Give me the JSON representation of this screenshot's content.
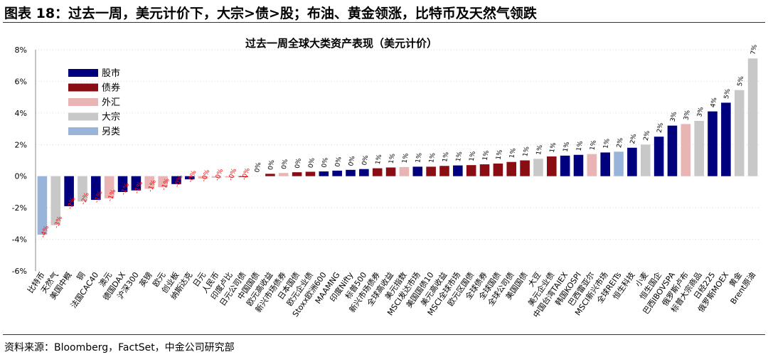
{
  "figure_title": "图表 18：过去一周，美元计价下，大宗>债>股；布油、黄金领涨，比特币及天然气领跌",
  "source": "资料来源：Bloomberg，FactSet，中金公司研究部",
  "colors": {
    "equity": "#00007F",
    "bond": "#8B0D14",
    "fx": "#E8B4B4",
    "commodity": "#C8C8C8",
    "alternative": "#99B4DB",
    "negative_label": "#FF0000",
    "positive_label": "#000000"
  },
  "chart_data": {
    "type": "bar",
    "title": "过去一周全球大类资产表现（美元计价）",
    "ylim": [
      -6,
      8
    ],
    "yticks": [
      "8%",
      "6%",
      "4%",
      "2%",
      "0%",
      "-2%",
      "-4%",
      "-6%"
    ],
    "ytick_values": [
      8,
      6,
      4,
      2,
      0,
      -2,
      -4,
      -6
    ],
    "grid": true,
    "legend_position": "top-left",
    "legend": [
      {
        "name": "股市",
        "cls": "equity"
      },
      {
        "name": "债券",
        "cls": "bond"
      },
      {
        "name": "外汇",
        "cls": "fx"
      },
      {
        "name": "大宗",
        "cls": "commodity"
      },
      {
        "name": "另类",
        "cls": "alternative"
      }
    ],
    "categories": [
      "比特币",
      "天然气",
      "美国中概",
      "铜",
      "法国CAC40",
      "澳元",
      "德国DAX",
      "沪深300",
      "英镑",
      "欧元",
      "创业板",
      "纳斯达克",
      "日元",
      "人民币",
      "印度卢比",
      "日元公司债",
      "中国国债",
      "欧元高收益",
      "新兴市场债券",
      "日本国债",
      "欧元企业债",
      "Stoxx欧洲600",
      "MAAMNG",
      "印度Nifty",
      "标普500",
      "新兴市场债券",
      "全球高收益",
      "美元指数",
      "MSCI发达市场",
      "美国国债10",
      "美元高收益",
      "MSCI全球市场",
      "欧元区国债",
      "全球债券",
      "全球国债",
      "全球公司债",
      "美国国债",
      "大豆",
      "美元企业债",
      "中国台湾TAIEX",
      "韩国KOSPI",
      "巴西雷亚尔",
      "MSCI新兴市场",
      "全球REITs",
      "恒生科技",
      "小麦",
      "恒生国企",
      "巴西IBOVSPA",
      "俄罗斯卢布",
      "标普大宗商品",
      "日经225",
      "俄罗斯MOEX",
      "黄金",
      "Brent原油"
    ],
    "values": [
      -3.7,
      -3.1,
      -1.9,
      -1.6,
      -1.5,
      -1.4,
      -1.0,
      -0.9,
      -0.8,
      -0.7,
      -0.5,
      -0.2,
      -0.15,
      -0.1,
      -0.08,
      -0.05,
      0.0,
      0.15,
      0.2,
      0.25,
      0.28,
      0.3,
      0.35,
      0.4,
      0.45,
      0.5,
      0.55,
      0.58,
      0.6,
      0.6,
      0.65,
      0.68,
      0.7,
      0.75,
      0.8,
      0.9,
      1.0,
      1.1,
      1.25,
      1.3,
      1.35,
      1.4,
      1.5,
      1.55,
      1.8,
      2.0,
      2.5,
      3.2,
      3.3,
      3.5,
      4.1,
      4.65,
      5.45,
      7.45
    ],
    "value_labels": [
      "-4%",
      "-3%",
      "-2%",
      "-2%",
      "-1%",
      "-1%",
      "-1%",
      "-1%",
      "-1%",
      "-1%",
      "-0%",
      "-0%",
      "-0%",
      "-0%",
      "-0%",
      "-0%",
      "0%",
      "0%",
      "0%",
      "0%",
      "0%",
      "0%",
      "0%",
      "0%",
      "0%",
      "1%",
      "1%",
      "1%",
      "1%",
      "1%",
      "1%",
      "1%",
      "1%",
      "1%",
      "1%",
      "1%",
      "1%",
      "1%",
      "1%",
      "1%",
      "1%",
      "1%",
      "1%",
      "2%",
      "2%",
      "2%",
      "2%",
      "3%",
      "3%",
      "3%",
      "4%",
      "5%",
      "5%",
      "7%"
    ],
    "asset_classes": [
      "alternative",
      "commodity",
      "equity",
      "commodity",
      "equity",
      "fx",
      "equity",
      "equity",
      "fx",
      "fx",
      "equity",
      "equity",
      "fx",
      "fx",
      "fx",
      "bond",
      "bond",
      "bond",
      "fx",
      "bond",
      "bond",
      "equity",
      "equity",
      "equity",
      "equity",
      "bond",
      "bond",
      "fx",
      "equity",
      "bond",
      "bond",
      "equity",
      "bond",
      "bond",
      "bond",
      "bond",
      "bond",
      "commodity",
      "bond",
      "equity",
      "equity",
      "fx",
      "equity",
      "alternative",
      "equity",
      "commodity",
      "equity",
      "equity",
      "fx",
      "commodity",
      "equity",
      "equity",
      "commodity",
      "commodity"
    ]
  }
}
